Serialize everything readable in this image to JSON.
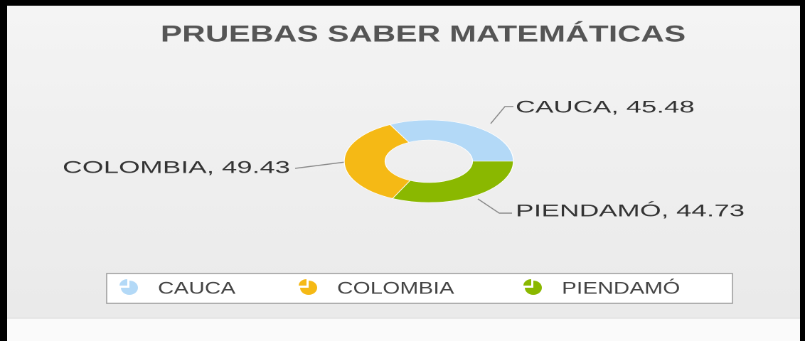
{
  "chart_data": {
    "type": "donut",
    "title": "PRUEBAS SABER MATEMÁTICAS",
    "categories": [
      "CAUCA",
      "COLOMBIA",
      "PIENDAMÓ"
    ],
    "values": [
      45.48,
      49.43,
      44.73
    ],
    "value_labels": [
      "CAUCA, 45.48",
      "COLOMBIA, 49.43",
      "PIENDAMÓ, 44.73"
    ],
    "colors": [
      "#b3d9f7",
      "#f5b915",
      "#8ab800"
    ],
    "legend": "bottom"
  }
}
